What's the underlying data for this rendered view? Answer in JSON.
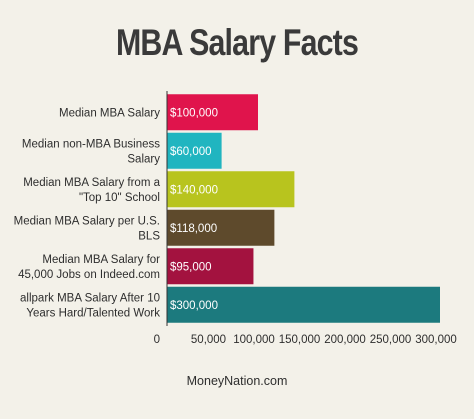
{
  "chart_data": {
    "type": "bar",
    "orientation": "horizontal",
    "title": "MBA Salary Facts",
    "categories": [
      [
        "Median MBA Salary"
      ],
      [
        "Median non-MBA Business",
        "Salary"
      ],
      [
        "Median MBA Salary from a",
        "\"Top 10\" School"
      ],
      [
        "Median MBA Salary per U.S.",
        "BLS"
      ],
      [
        "Median MBA Salary for",
        "45,000 Jobs on Indeed.com"
      ],
      [
        "allpark MBA Salary After 10",
        "Years Hard/Talented Work"
      ]
    ],
    "values": [
      100000,
      60000,
      140000,
      118000,
      95000,
      300000
    ],
    "value_labels": [
      "$100,000",
      "$60,000",
      "$140,000",
      "$118,000",
      "$95,000",
      "$300,000"
    ],
    "colors": [
      "#e0144c",
      "#20b5c0",
      "#b8c41e",
      "#5e4a2c",
      "#a3123f",
      "#1c7a7e"
    ],
    "xticks": [
      0,
      50000,
      100000,
      150000,
      200000,
      250000,
      300000
    ],
    "xtick_labels": [
      "0",
      "50,000",
      "100,000",
      "150,000",
      "200,000",
      "250,000",
      "300,000"
    ],
    "xlim": [
      0,
      300000
    ],
    "xlabel": "",
    "ylabel": "",
    "grid": false,
    "legend": "none"
  },
  "footer": {
    "source": "MoneyNation.com"
  }
}
